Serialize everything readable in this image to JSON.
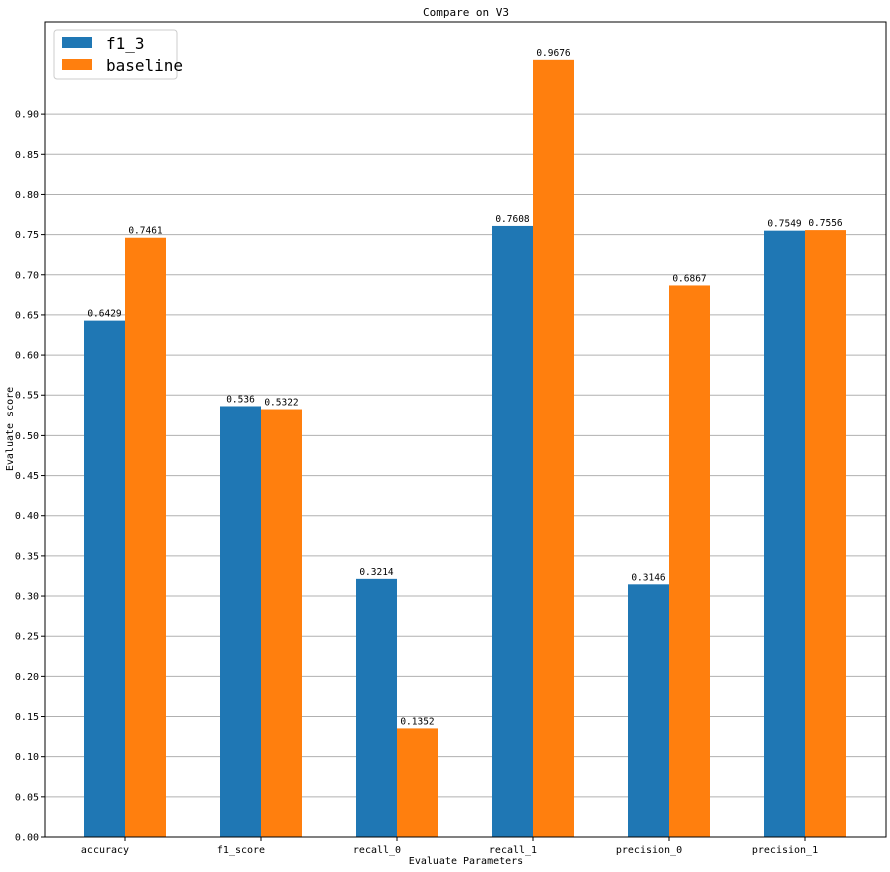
{
  "chart_data": {
    "type": "bar",
    "title": "Compare on V3",
    "xlabel": "Evaluate Parameters",
    "ylabel": "Evaluate score",
    "categories": [
      "accuracy",
      "f1_score",
      "recall_0",
      "recall_1",
      "precision_0",
      "precision_1"
    ],
    "series": [
      {
        "name": "f1_3",
        "color": "#1f77b4",
        "values": [
          0.6429,
          0.536,
          0.3214,
          0.7608,
          0.3146,
          0.7549
        ],
        "labels": [
          "0.6429",
          "0.536",
          "0.3214",
          "0.7608",
          "0.3146",
          "0.7549"
        ]
      },
      {
        "name": "baseline",
        "color": "#ff7f0e",
        "values": [
          0.7461,
          0.5322,
          0.1352,
          0.9676,
          0.6867,
          0.7556
        ],
        "labels": [
          "0.7461",
          "0.5322",
          "0.1352",
          "0.9676",
          "0.6867",
          "0.7556"
        ]
      }
    ],
    "yticks": [
      "0.00",
      "0.05",
      "0.10",
      "0.15",
      "0.20",
      "0.25",
      "0.30",
      "0.35",
      "0.40",
      "0.45",
      "0.50",
      "0.55",
      "0.60",
      "0.65",
      "0.70",
      "0.75",
      "0.80",
      "0.85",
      "0.90"
    ],
    "ylim": [
      0,
      1.0147
    ],
    "grid": "horizontal",
    "legend_position": "top-left"
  }
}
